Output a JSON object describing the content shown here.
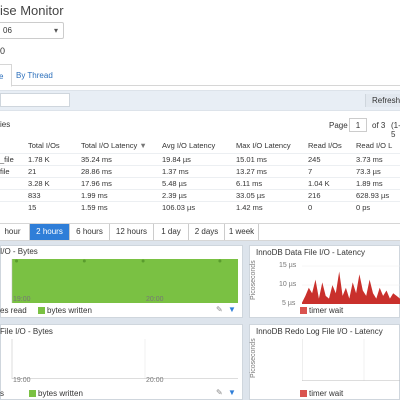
{
  "app": {
    "title": "ise Monitor",
    "instance_select": "06",
    "zero_marker": "0"
  },
  "tabs": [
    {
      "label": "e"
    },
    {
      "label": "By Thread"
    }
  ],
  "toolbar": {
    "search_placeholder": "",
    "refresh_label": "Refreshe"
  },
  "list": {
    "caption": "ies"
  },
  "pager": {
    "label": "Page",
    "current": "1",
    "of_label": "of 3",
    "range": "(1-5"
  },
  "table": {
    "headers": [
      "Total I/Os",
      "Total I/O Latency",
      "Avg I/O Latency",
      "Max I/O Latency",
      "Read I/Os",
      "Read I/O L"
    ],
    "rows": [
      {
        "name": "_file",
        "cells": [
          "1.78 K",
          "35.24 ms",
          "19.84 µs",
          "15.01 ms",
          "245",
          "3.73 ms"
        ]
      },
      {
        "name": "file",
        "cells": [
          "21",
          "28.86 ms",
          "1.37 ms",
          "13.27 ms",
          "7",
          "73.3 µs"
        ]
      },
      {
        "name": "",
        "cells": [
          "3.28 K",
          "17.96 ms",
          "5.48 µs",
          "6.11 ms",
          "1.04 K",
          "1.89 ms"
        ]
      },
      {
        "name": "",
        "cells": [
          "833",
          "1.99 ms",
          "2.39 µs",
          "33.05 µs",
          "216",
          "628.93 µs"
        ]
      },
      {
        "name": "",
        "cells": [
          "15",
          "1.59 ms",
          "106.03 µs",
          "1.42 ms",
          "0",
          "0 ps"
        ]
      }
    ]
  },
  "ranges": [
    {
      "label": "hour",
      "active": false
    },
    {
      "label": "2 hours",
      "active": true
    },
    {
      "label": "6 hours",
      "active": false
    },
    {
      "label": "12 hours",
      "active": false
    },
    {
      "label": "1 day",
      "active": false
    },
    {
      "label": "2 days",
      "active": false
    },
    {
      "label": "1 week",
      "active": false
    }
  ],
  "colors": {
    "accent": "#2f7ed8",
    "green": "#7ac143",
    "red": "#d9534f"
  },
  "chart_data": [
    {
      "type": "area",
      "title": "I/O - Bytes",
      "x_ticks": [
        "19:00",
        "20:00"
      ],
      "series": [
        {
          "name": "es read",
          "values": []
        },
        {
          "name": "bytes written",
          "values": [
            0.95,
            0.95,
            0.95,
            0.95,
            0.95,
            0.95,
            0.95,
            0.95,
            0.95,
            0.95,
            0.95,
            0.95
          ]
        }
      ],
      "markers_at": [
        0.02,
        0.32,
        0.58,
        0.92
      ]
    },
    {
      "type": "area",
      "title": "InnoDB Data File I/O - Latency",
      "ylabel": "Picoseconds",
      "y_ticks": [
        "15 µs",
        "10 µs",
        "5 µs"
      ],
      "ylim": [
        0,
        17
      ],
      "series": [
        {
          "name": "timer wait",
          "values": [
            0.5,
            3,
            6,
            4,
            9,
            2,
            8,
            3,
            2,
            7,
            4,
            12,
            3,
            6,
            2,
            8,
            4,
            11,
            5,
            3,
            9,
            4,
            2,
            6,
            3,
            5,
            2,
            4,
            3,
            2
          ]
        }
      ]
    },
    {
      "type": "area",
      "title": "File I/O - Bytes",
      "x_ticks": [
        "19:00",
        "20:00"
      ],
      "series": [
        {
          "name": "s",
          "values": []
        },
        {
          "name": "bytes written",
          "values": []
        }
      ]
    },
    {
      "type": "area",
      "title": "InnoDB Redo Log File I/O - Latency",
      "ylabel": "Picoseconds",
      "series": [
        {
          "name": "timer wait",
          "values": []
        }
      ]
    }
  ]
}
